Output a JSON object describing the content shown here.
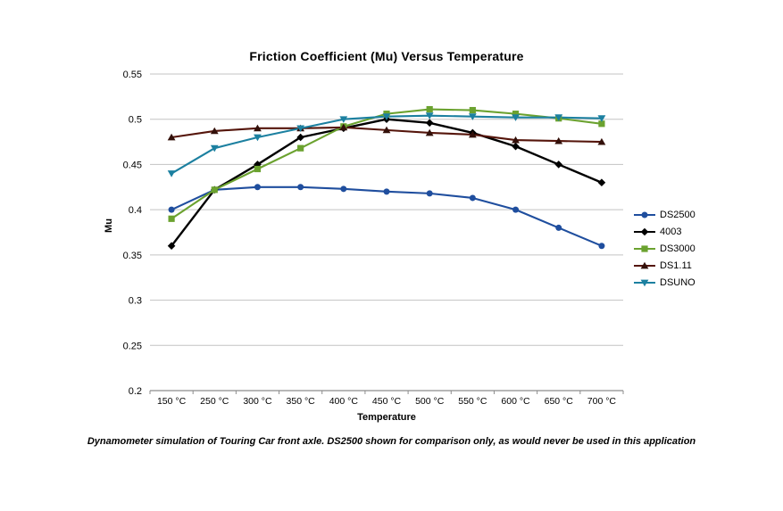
{
  "chart": {
    "title": "Friction Coefficient (Mu) Versus Temperature",
    "xlabel": "Temperature",
    "ylabel": "Mu",
    "caption": "Dynamometer simulation of Touring Car front axle. DS2500 shown for comparison only, as would never be used in this application"
  },
  "chart_data": {
    "type": "line",
    "title": "Friction Coefficient (Mu) Versus Temperature",
    "xlabel": "Temperature",
    "ylabel": "Mu",
    "categories": [
      "150 °C",
      "250 °C",
      "300 °C",
      "350 °C",
      "400 °C",
      "450 °C",
      "500 °C",
      "550 °C",
      "600 °C",
      "650 °C",
      "700 °C"
    ],
    "series": [
      {
        "name": "DS2500",
        "marker": "circle",
        "color": "#1F4E9E",
        "marker_color": "#1F4E9E",
        "values": [
          0.4,
          0.422,
          0.425,
          0.425,
          0.423,
          0.42,
          0.418,
          0.413,
          0.4,
          0.38,
          0.36
        ]
      },
      {
        "name": "4003",
        "marker": "diamond",
        "color": "#000000",
        "marker_color": "#000000",
        "values": [
          0.36,
          0.422,
          0.45,
          0.48,
          0.49,
          0.5,
          0.496,
          0.485,
          0.47,
          0.45,
          0.43
        ]
      },
      {
        "name": "DS3000",
        "marker": "square",
        "color": "#6BA22F",
        "marker_color": "#6BA22F",
        "values": [
          0.39,
          0.422,
          0.445,
          0.468,
          0.492,
          0.506,
          0.511,
          0.51,
          0.506,
          0.501,
          0.495
        ]
      },
      {
        "name": "DS1.11",
        "marker": "triangle-up",
        "color": "#55150B",
        "marker_color": "#33100A",
        "values": [
          0.48,
          0.487,
          0.49,
          0.49,
          0.491,
          0.488,
          0.485,
          0.483,
          0.477,
          0.476,
          0.475
        ]
      },
      {
        "name": "DSUNO",
        "marker": "triangle-down",
        "color": "#1C80A0",
        "marker_color": "#1C80A0",
        "values": [
          0.44,
          0.468,
          0.48,
          0.49,
          0.5,
          0.503,
          0.504,
          0.503,
          0.502,
          0.502,
          0.501
        ]
      }
    ],
    "ylim": [
      0.2,
      0.55
    ],
    "yticks": [
      "0.55",
      "0.5",
      "0.45",
      "0.4",
      "0.35",
      "0.3",
      "0.25",
      "0.2"
    ],
    "grid": "horizontal",
    "legend_position": "right"
  },
  "colors": {
    "background": "#FFFFFF",
    "gridline": "#C3C3C3",
    "axis": "#8C8C8C",
    "text": "#000000"
  }
}
